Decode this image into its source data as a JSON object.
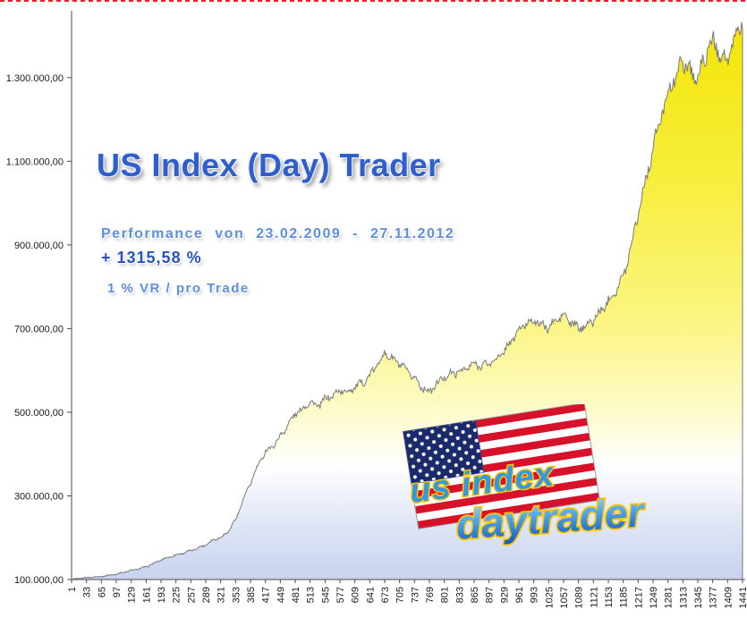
{
  "page": {
    "background": "#ffffff",
    "top_border_color": "#ff1a1a"
  },
  "header": {
    "title": "US Index (Day) Trader",
    "subtitle": "Performance  von  23.02.2009 - 27.11.2012",
    "performance": "+ 1315,58 %",
    "risk_note": "1 % VR / pro Trade"
  },
  "logo": {
    "line1": "us index",
    "line2": "daytrader"
  },
  "chart_data": {
    "type": "area",
    "title": "US Index (Day) Trader",
    "subtitle": "Performance von 23.02.2009 - 27.11.2012",
    "performance": "+ 1315,58 %",
    "note": "1 % VR / pro Trade",
    "xlabel": "",
    "ylabel": "",
    "grid": false,
    "legend": "none",
    "xlim": [
      1,
      1441
    ],
    "ylim": [
      100000,
      1460000
    ],
    "x_tick_labels": [
      "1",
      "33",
      "65",
      "97",
      "129",
      "161",
      "193",
      "225",
      "257",
      "289",
      "321",
      "353",
      "385",
      "417",
      "449",
      "481",
      "513",
      "545",
      "577",
      "609",
      "641",
      "673",
      "705",
      "737",
      "769",
      "801",
      "833",
      "865",
      "897",
      "929",
      "961",
      "993",
      "1025",
      "1057",
      "1089",
      "1121",
      "1153",
      "1185",
      "1217",
      "1249",
      "1281",
      "1313",
      "1345",
      "1377",
      "1409",
      "1441"
    ],
    "y_ticks": [
      {
        "value": 100000,
        "label": "100.000,00"
      },
      {
        "value": 300000,
        "label": "300.000,00"
      },
      {
        "value": 500000,
        "label": "500.000,00"
      },
      {
        "value": 700000,
        "label": "700.000,00"
      },
      {
        "value": 900000,
        "label": "900.000,00"
      },
      {
        "value": 1100000,
        "label": "1.100.000,00"
      },
      {
        "value": 1300000,
        "label": "1.300.000,00"
      }
    ],
    "series": [
      {
        "name": "equity-curve",
        "x": [
          1,
          33,
          65,
          97,
          129,
          161,
          193,
          225,
          257,
          289,
          305,
          321,
          337,
          353,
          369,
          385,
          401,
          417,
          433,
          449,
          465,
          481,
          497,
          513,
          529,
          545,
          561,
          577,
          593,
          609,
          625,
          641,
          657,
          673,
          689,
          705,
          721,
          737,
          753,
          769,
          785,
          801,
          817,
          833,
          849,
          865,
          881,
          897,
          913,
          929,
          945,
          961,
          977,
          993,
          1009,
          1025,
          1041,
          1057,
          1073,
          1089,
          1105,
          1121,
          1137,
          1153,
          1169,
          1185,
          1201,
          1217,
          1233,
          1249,
          1265,
          1281,
          1297,
          1313,
          1329,
          1345,
          1361,
          1377,
          1393,
          1409,
          1425,
          1441
        ],
        "values": [
          100000,
          104000,
          108000,
          113000,
          121000,
          131000,
          147000,
          158000,
          170000,
          183000,
          194000,
          200000,
          215000,
          245000,
          290000,
          330000,
          370000,
          405000,
          420000,
          445000,
          470000,
          495000,
          505000,
          525000,
          515000,
          535000,
          540000,
          550000,
          545000,
          560000,
          572000,
          590000,
          615000,
          638000,
          625000,
          615000,
          600000,
          585000,
          560000,
          545000,
          565000,
          585000,
          595000,
          600000,
          605000,
          612000,
          608000,
          618000,
          630000,
          648000,
          670000,
          692000,
          710000,
          722000,
          712000,
          705000,
          718000,
          728000,
          712000,
          702000,
          712000,
          722000,
          740000,
          762000,
          790000,
          825000,
          900000,
          980000,
          1050000,
          1125000,
          1200000,
          1270000,
          1310000,
          1345000,
          1310000,
          1290000,
          1350000,
          1395000,
          1365000,
          1340000,
          1390000,
          1430000
        ]
      }
    ],
    "colors": {
      "fill_top": "#f3e403",
      "fill_mid": "#ffffff",
      "fill_bottom": "#c7d2ee",
      "line": "#7a7a7a",
      "title_blue": "#2f5fcb",
      "accent_blue": "#5d8fdd"
    }
  }
}
